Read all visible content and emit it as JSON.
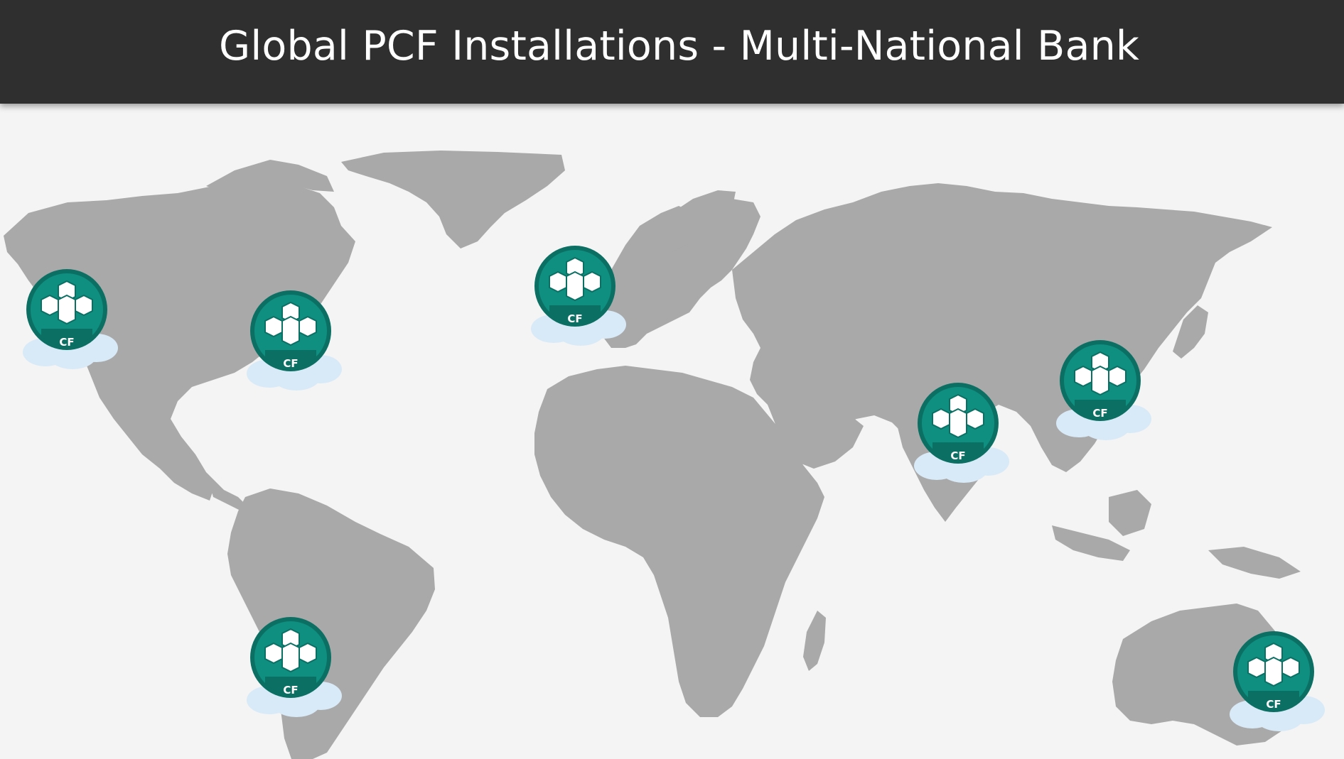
{
  "title": "Global PCF Installations - Multi-National Bank",
  "colors": {
    "title_bar": "#2f2f2f",
    "background": "#f4f4f4",
    "land": "#a9a9a9",
    "badge_teal": "#0f8f80",
    "badge_ring": "#0b6f63",
    "cloud": "#d8eaf7"
  },
  "map": {
    "icon": "world-map",
    "markers": [
      {
        "id": "us-west",
        "label": "CF",
        "icon": "cloud-foundry-icon"
      },
      {
        "id": "us-east",
        "label": "CF",
        "icon": "cloud-foundry-icon"
      },
      {
        "id": "europe-west",
        "label": "CF",
        "icon": "cloud-foundry-icon"
      },
      {
        "id": "india",
        "label": "CF",
        "icon": "cloud-foundry-icon"
      },
      {
        "id": "east-asia",
        "label": "CF",
        "icon": "cloud-foundry-icon"
      },
      {
        "id": "south-america",
        "label": "CF",
        "icon": "cloud-foundry-icon"
      },
      {
        "id": "australia",
        "label": "CF",
        "icon": "cloud-foundry-icon"
      }
    ]
  }
}
